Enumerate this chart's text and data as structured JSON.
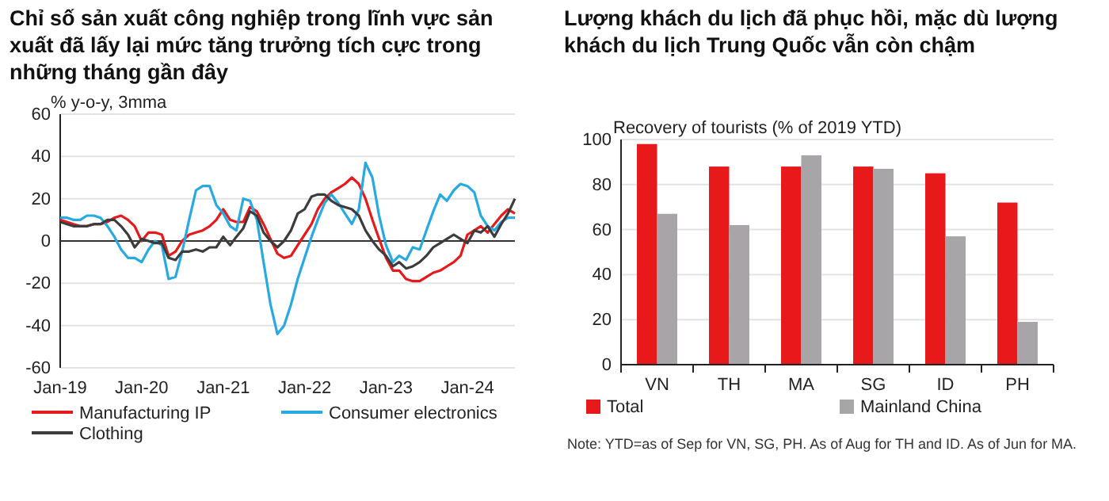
{
  "chart_data": [
    {
      "type": "line",
      "title": "Chỉ số sản xuất công nghiệp trong lĩnh vực sản xuất đã lấy lại mức tăng trưởng tích cực trong những tháng gần đây",
      "ylabel": "% y-o-y, 3mma",
      "x": [
        "2019-01",
        "2019-02",
        "2019-03",
        "2019-04",
        "2019-05",
        "2019-06",
        "2019-07",
        "2019-08",
        "2019-09",
        "2019-10",
        "2019-11",
        "2019-12",
        "2020-01",
        "2020-02",
        "2020-03",
        "2020-04",
        "2020-05",
        "2020-06",
        "2020-07",
        "2020-08",
        "2020-09",
        "2020-10",
        "2020-11",
        "2020-12",
        "2021-01",
        "2021-02",
        "2021-03",
        "2021-04",
        "2021-05",
        "2021-06",
        "2021-07",
        "2021-08",
        "2021-09",
        "2021-10",
        "2021-11",
        "2021-12",
        "2022-01",
        "2022-02",
        "2022-03",
        "2022-04",
        "2022-05",
        "2022-06",
        "2022-07",
        "2022-08",
        "2022-09",
        "2022-10",
        "2022-11",
        "2022-12",
        "2023-01",
        "2023-02",
        "2023-03",
        "2023-04",
        "2023-05",
        "2023-06",
        "2023-07",
        "2023-08",
        "2023-09",
        "2023-10",
        "2023-11",
        "2023-12",
        "2024-01",
        "2024-02",
        "2024-03",
        "2024-04",
        "2024-05",
        "2024-06",
        "2024-07",
        "2024-08"
      ],
      "series": [
        {
          "name": "Manufacturing IP",
          "color": "#e8191b",
          "values": [
            10,
            9,
            8,
            7,
            7,
            8,
            8,
            9,
            11,
            12,
            10,
            7,
            0,
            4,
            4,
            3,
            -7,
            -5,
            0,
            3,
            4,
            5,
            7,
            10,
            15,
            10,
            9,
            9,
            16,
            14,
            8,
            1,
            -6,
            -8,
            -7,
            -2,
            3,
            8,
            15,
            20,
            23,
            25,
            27,
            30,
            27,
            20,
            10,
            1,
            -8,
            -14,
            -14,
            -18,
            -19,
            -19,
            -17,
            -15,
            -14,
            -12,
            -10,
            -7,
            3,
            5,
            7,
            4,
            8,
            12,
            15,
            13
          ]
        },
        {
          "name": "Consumer electronics",
          "color": "#27aae1",
          "values": [
            11,
            11,
            10,
            10,
            12,
            12,
            11,
            7,
            2,
            -4,
            -8,
            -8,
            -10,
            -4,
            0,
            -2,
            -18,
            -17,
            -5,
            10,
            24,
            26,
            26,
            17,
            13,
            7,
            5,
            20,
            19,
            10,
            -10,
            -30,
            -44,
            -40,
            -30,
            -18,
            -8,
            2,
            10,
            18,
            22,
            18,
            13,
            8,
            15,
            37,
            30,
            12,
            -2,
            -10,
            -7,
            -9,
            -3,
            -4,
            5,
            14,
            22,
            19,
            24,
            27,
            26,
            23,
            12,
            7,
            5,
            9,
            11,
            11
          ]
        },
        {
          "name": "Clothing",
          "color": "#3c3c3c",
          "values": [
            9,
            8,
            7,
            7,
            7,
            8,
            8,
            10,
            10,
            7,
            3,
            -3,
            1,
            0,
            -1,
            -1,
            -8,
            -9,
            -5,
            -5,
            -4,
            -5,
            -3,
            -3,
            2,
            -2,
            2,
            6,
            14,
            12,
            4,
            0,
            -3,
            0,
            5,
            13,
            15,
            21,
            22,
            22,
            19,
            17,
            16,
            15,
            12,
            5,
            0,
            -4,
            -7,
            -12,
            -10,
            -13,
            -12,
            -10,
            -7,
            -3,
            -1,
            1,
            3,
            1,
            -1,
            5,
            4,
            7,
            2,
            8,
            13,
            20
          ]
        }
      ],
      "xlim": [
        "2019-01",
        "2024-08"
      ],
      "xticks": [
        {
          "value": "2019-01",
          "label": "Jan-19"
        },
        {
          "value": "2020-01",
          "label": "Jan-20"
        },
        {
          "value": "2021-01",
          "label": "Jan-21"
        },
        {
          "value": "2022-01",
          "label": "Jan-22"
        },
        {
          "value": "2023-01",
          "label": "Jan-23"
        },
        {
          "value": "2024-01",
          "label": "Jan-24"
        }
      ],
      "ylim": [
        -60,
        60
      ],
      "yticks": [
        -60,
        -40,
        -20,
        0,
        20,
        40,
        60
      ],
      "grid": "y",
      "legend": "bottom",
      "line_style": "solid"
    },
    {
      "type": "bar",
      "title": "Lượng khách du lịch đã phục hồi, mặc dù lượng khách du lịch Trung Quốc vẫn còn chậm",
      "ylabel": "Recovery of tourists (% of 2019 YTD)",
      "categories": [
        "VN",
        "TH",
        "MA",
        "SG",
        "ID",
        "PH"
      ],
      "series": [
        {
          "name": "Total",
          "color": "#e8191b",
          "values": [
            98,
            88,
            88,
            88,
            85,
            72
          ]
        },
        {
          "name": "Mainland China",
          "color": "#a7a5a8",
          "values": [
            67,
            62,
            93,
            87,
            57,
            19
          ]
        }
      ],
      "ylim": [
        0,
        100
      ],
      "yticks": [
        0,
        20,
        40,
        60,
        80,
        100
      ],
      "grid": "y",
      "legend": "bottom",
      "annotations": [
        "Note: YTD=as of Sep for VN, SG, PH. As of Aug for TH and ID. As of Jun for MA."
      ]
    }
  ]
}
